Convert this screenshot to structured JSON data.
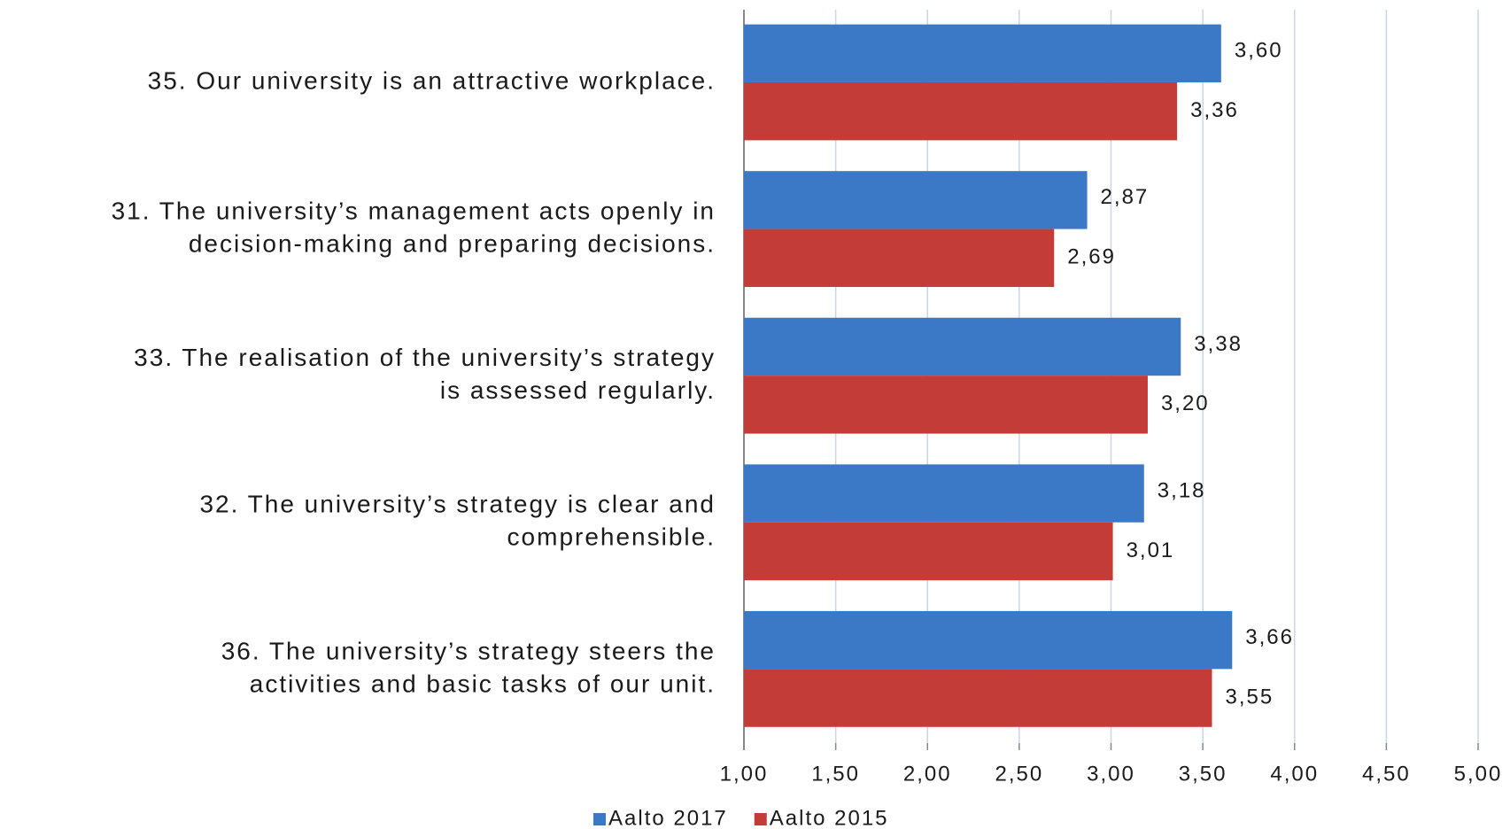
{
  "chart_data": {
    "type": "bar",
    "orientation": "horizontal",
    "categories": [
      [
        "35. Our university is an attractive workplace."
      ],
      [
        "31. The university’s management acts openly in",
        "decision-making and preparing decisions."
      ],
      [
        "33. The realisation of the university’s strategy",
        "is assessed regularly."
      ],
      [
        "32. The university’s strategy is clear and",
        "comprehensible."
      ],
      [
        "36. The university’s strategy steers the",
        "activities and basic tasks of our unit."
      ]
    ],
    "series": [
      {
        "name": "Aalto 2017",
        "color": "#3b78c6",
        "values": [
          3.6,
          2.87,
          3.38,
          3.18,
          3.66
        ],
        "value_labels": [
          "3,60",
          "2,87",
          "3,38",
          "3,18",
          "3,66"
        ]
      },
      {
        "name": "Aalto 2015",
        "color": "#c33c38",
        "values": [
          3.36,
          2.69,
          3.2,
          3.01,
          3.55
        ],
        "value_labels": [
          "3,36",
          "2,69",
          "3,20",
          "3,01",
          "3,55"
        ]
      }
    ],
    "xlim": [
      1,
      5
    ],
    "xticks": [
      {
        "value": 1,
        "label": "1,00"
      },
      {
        "value": 1.5,
        "label": "1,50"
      },
      {
        "value": 2,
        "label": "2,00"
      },
      {
        "value": 2.5,
        "label": "2,50"
      },
      {
        "value": 3,
        "label": "3,00"
      },
      {
        "value": 3.5,
        "label": "3,50"
      },
      {
        "value": 4,
        "label": "4,00"
      },
      {
        "value": 4.5,
        "label": "4,50"
      },
      {
        "value": 5,
        "label": "5,00"
      }
    ],
    "grid": true,
    "legend": "bottom"
  }
}
